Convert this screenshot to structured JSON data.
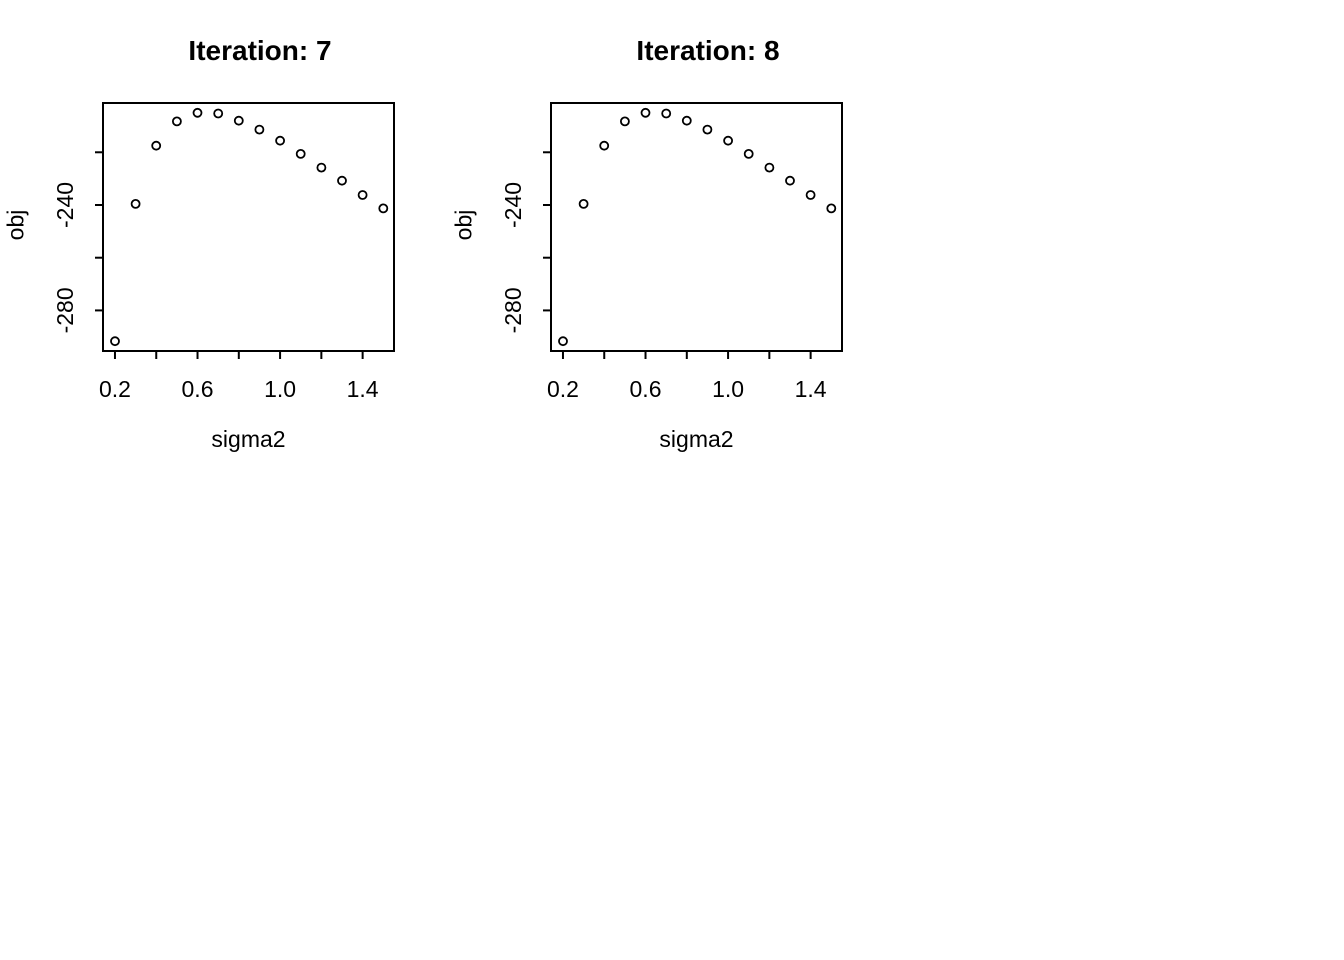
{
  "page": {
    "background_color": "#ffffff",
    "foreground_color": "#000000"
  },
  "chart_data": [
    {
      "type": "scatter",
      "title": "Iteration: 7",
      "xlabel": "sigma2",
      "ylabel": "obj",
      "point_style": "open-circle",
      "point_color": "#000000",
      "grid": false,
      "legend": null,
      "x": [
        0.2,
        0.3,
        0.4,
        0.5,
        0.6,
        0.7,
        0.8,
        0.9,
        1.0,
        1.1,
        1.2,
        1.3,
        1.4,
        1.5
      ],
      "y": [
        -291.7,
        -239.6,
        -217.5,
        -208.3,
        -205.0,
        -205.3,
        -208.0,
        -211.4,
        -215.6,
        -220.6,
        -225.8,
        -230.8,
        -236.2,
        -241.3
      ],
      "xlim": [
        0.142,
        1.552
      ],
      "ylim": [
        -295.4,
        -201.3
      ],
      "xticks": [
        0.2,
        0.4,
        0.6,
        0.8,
        1.0,
        1.2,
        1.4
      ],
      "xtick_labels": [
        "0.2",
        "",
        "0.6",
        "",
        "1.0",
        "",
        "1.4"
      ],
      "yticks": [
        -220,
        -240,
        -260,
        -280
      ],
      "ytick_labels": [
        "",
        "-240",
        "",
        "-280"
      ]
    },
    {
      "type": "scatter",
      "title": "Iteration: 8",
      "xlabel": "sigma2",
      "ylabel": "obj",
      "point_style": "open-circle",
      "point_color": "#000000",
      "grid": false,
      "legend": null,
      "x": [
        0.2,
        0.3,
        0.4,
        0.5,
        0.6,
        0.7,
        0.8,
        0.9,
        1.0,
        1.1,
        1.2,
        1.3,
        1.4,
        1.5
      ],
      "y": [
        -291.7,
        -239.6,
        -217.5,
        -208.3,
        -205.0,
        -205.3,
        -208.0,
        -211.4,
        -215.6,
        -220.6,
        -225.8,
        -230.8,
        -236.2,
        -241.3
      ],
      "xlim": [
        0.142,
        1.552
      ],
      "ylim": [
        -295.4,
        -201.3
      ],
      "xticks": [
        0.2,
        0.4,
        0.6,
        0.8,
        1.0,
        1.2,
        1.4
      ],
      "xtick_labels": [
        "0.2",
        "",
        "0.6",
        "",
        "1.0",
        "",
        "1.4"
      ],
      "yticks": [
        -220,
        -240,
        -260,
        -280
      ],
      "ytick_labels": [
        "",
        "-240",
        "",
        "-280"
      ]
    }
  ]
}
